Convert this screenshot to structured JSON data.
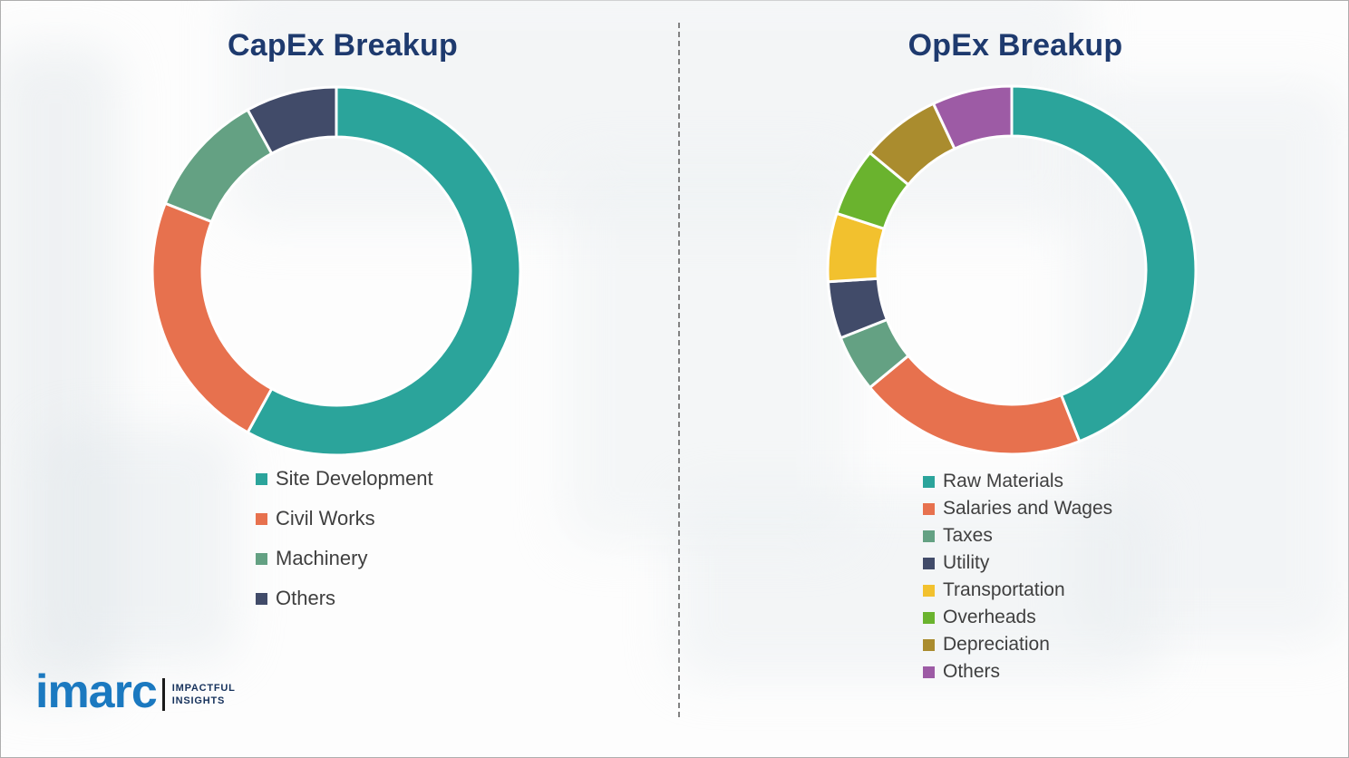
{
  "page": {
    "capex_title": "CapEx Breakup",
    "opex_title": "OpEx Breakup"
  },
  "chart_data": [
    {
      "type": "pie",
      "subtype": "donut",
      "title": "CapEx Breakup",
      "labels": [
        "Site Development",
        "Civil Works",
        "Machinery",
        "Others"
      ],
      "values": [
        58,
        23,
        11,
        8
      ],
      "unit": "percent-share",
      "colors": [
        "#2ba49b",
        "#e7714e",
        "#64a183",
        "#414b69"
      ],
      "start_angle_deg": 0,
      "direction": "clockwise",
      "legend_position": "below-left"
    },
    {
      "type": "pie",
      "subtype": "donut",
      "title": "OpEx Breakup",
      "labels": [
        "Raw Materials",
        "Salaries and Wages",
        "Taxes",
        "Utility",
        "Transportation",
        "Overheads",
        "Depreciation",
        "Others"
      ],
      "values": [
        44,
        20,
        5,
        5,
        6,
        6,
        7,
        7
      ],
      "unit": "percent-share",
      "colors": [
        "#2ba49b",
        "#e7714e",
        "#64a183",
        "#414b69",
        "#f2c12e",
        "#6ab32e",
        "#aa8c2e",
        "#9d5ba5"
      ],
      "start_angle_deg": 0,
      "direction": "clockwise",
      "legend_position": "below-left"
    }
  ],
  "logo": {
    "brand": "imarc",
    "tagline_line1": "IMPACTFUL",
    "tagline_line2": "INSIGHTS"
  }
}
